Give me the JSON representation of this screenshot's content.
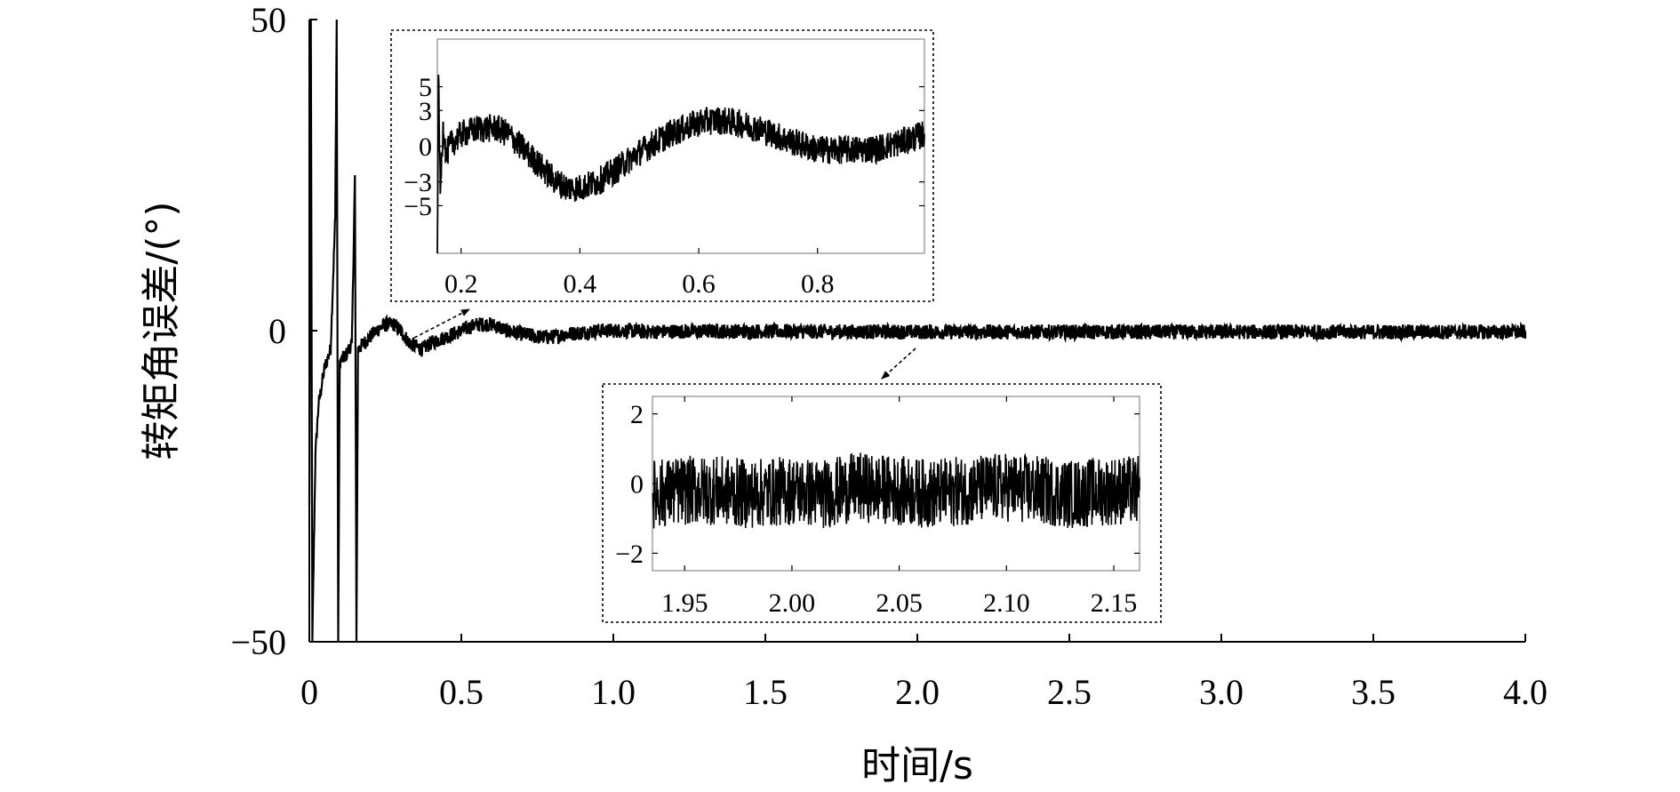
{
  "chart_data": [
    {
      "type": "line",
      "role": "main",
      "xlabel": "时间/s",
      "ylabel": "转矩角误差/(°)",
      "xlim": [
        0,
        4.0
      ],
      "ylim": [
        -50,
        50
      ],
      "x_ticks": [
        0,
        0.5,
        1.0,
        1.5,
        2.0,
        2.5,
        3.0,
        3.5,
        4.0
      ],
      "x_tick_labels": [
        "0",
        "0.5",
        "1.0",
        "1.5",
        "2.0",
        "2.5",
        "3.0",
        "3.5",
        "4.0"
      ],
      "y_ticks": [
        -50,
        0,
        50
      ],
      "y_tick_labels": [
        "−50",
        "0",
        "50"
      ],
      "series": [
        {
          "color": "#000000",
          "x": [
            0,
            0.005,
            0.01,
            0.02,
            0.03,
            0.05,
            0.07,
            0.085,
            0.09,
            0.095,
            0.1,
            0.12,
            0.14,
            0.15,
            0.155,
            0.16,
            0.18,
            0.2,
            0.22,
            0.25,
            0.28,
            0.3,
            0.33,
            0.37,
            0.4,
            0.45,
            0.5,
            0.55,
            0.6,
            0.65,
            0.7,
            0.75,
            0.8,
            0.85,
            0.9,
            0.95,
            1.0,
            1.05,
            1.1,
            1.2,
            1.3,
            1.5,
            2.0,
            2.5,
            3.0,
            3.5,
            4.0
          ],
          "y": [
            -28,
            50,
            -50,
            -20,
            -12,
            -6,
            -3,
            18,
            50,
            -50,
            -5,
            -4,
            -2,
            25,
            -50,
            -3,
            -2,
            -1,
            0,
            1,
            1,
            0,
            -2,
            -3,
            -2,
            -1,
            0,
            1,
            1,
            0,
            -0.5,
            -1,
            -1,
            -0.5,
            -0.3,
            0,
            0,
            0,
            -0.2,
            -0.1,
            -0.1,
            -0.1,
            -0.2,
            -0.2,
            -0.2,
            -0.2,
            -0.2
          ],
          "noise_amplitude": 1.2
        }
      ]
    },
    {
      "type": "line",
      "role": "inset",
      "xlim": [
        0.16,
        0.98
      ],
      "ylim": [
        -9,
        9
      ],
      "x_ticks": [
        0.2,
        0.4,
        0.6,
        0.8
      ],
      "x_tick_labels": [
        "0.2",
        "0.4",
        "0.6",
        "0.8"
      ],
      "y_ticks": [
        -5,
        -3,
        0,
        3,
        5
      ],
      "y_tick_labels": [
        "−5",
        "−3",
        "0",
        "3",
        "5"
      ],
      "series": [
        {
          "color": "#000000",
          "x": [
            0.16,
            0.162,
            0.165,
            0.17,
            0.175,
            0.18,
            0.2,
            0.23,
            0.26,
            0.28,
            0.3,
            0.33,
            0.36,
            0.38,
            0.4,
            0.43,
            0.46,
            0.5,
            0.55,
            0.6,
            0.63,
            0.66,
            0.7,
            0.75,
            0.8,
            0.85,
            0.9,
            0.95,
            0.98
          ],
          "y": [
            -9,
            6,
            -4,
            2,
            -1,
            0,
            1,
            1.5,
            1.5,
            1,
            0,
            -1.5,
            -3,
            -3.5,
            -3.5,
            -3,
            -2,
            -0.5,
            1,
            2,
            2.2,
            2,
            1.5,
            0.5,
            -0.3,
            -0.3,
            -0.2,
            0.5,
            1
          ],
          "noise_amplitude": 1.2
        }
      ]
    },
    {
      "type": "line",
      "role": "inset",
      "xlim": [
        1.935,
        2.162
      ],
      "ylim": [
        -2.5,
        2.5
      ],
      "x_ticks": [
        1.95,
        2.0,
        2.05,
        2.1,
        2.15
      ],
      "x_tick_labels": [
        "1.95",
        "2.00",
        "2.05",
        "2.10",
        "2.15"
      ],
      "y_ticks": [
        -2,
        0,
        2
      ],
      "y_tick_labels": [
        "−2",
        "0",
        "2"
      ],
      "series": [
        {
          "color": "#000000",
          "x": [
            1.935,
            1.95,
            1.965,
            1.98,
            2.0,
            2.015,
            2.03,
            2.05,
            2.065,
            2.08,
            2.1,
            2.115,
            2.13,
            2.15,
            2.162
          ],
          "y": [
            -0.3,
            -0.2,
            -0.2,
            -0.3,
            -0.2,
            -0.3,
            -0.1,
            -0.2,
            -0.3,
            -0.2,
            -0.1,
            -0.2,
            -0.3,
            -0.2,
            -0.2
          ],
          "noise_amplitude": 1.0
        }
      ]
    }
  ]
}
